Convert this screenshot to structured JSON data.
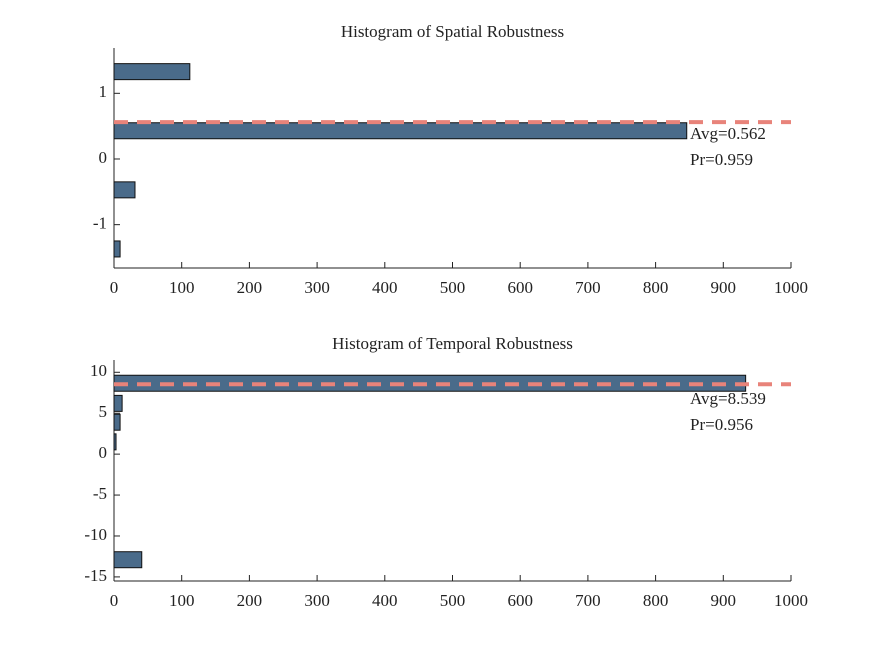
{
  "chart_data": [
    {
      "type": "barh",
      "title": "Histogram of Spatial Robustness",
      "y": [
        1.33,
        0.43,
        -0.47,
        -1.37
      ],
      "values": [
        112,
        846,
        31,
        9
      ],
      "color": "#4a6b8a",
      "xlim": [
        0,
        1000
      ],
      "xticks": [
        0,
        100,
        200,
        300,
        400,
        500,
        600,
        700,
        800,
        900,
        1000
      ],
      "ylim": [
        -1.66,
        1.69
      ],
      "yticks": [
        -1,
        0,
        1
      ],
      "avg_line": {
        "value": 0.562,
        "color": "#e8837a"
      },
      "annotations": [
        "Avg=0.562",
        "Pr=0.959"
      ]
    },
    {
      "type": "barh",
      "title": "Histogram of Temporal Robustness",
      "y": [
        8.66,
        6.2,
        3.9,
        1.5,
        -12.9
      ],
      "values": [
        933,
        12,
        9,
        3,
        41
      ],
      "color": "#4a6b8a",
      "xlim": [
        0,
        1000
      ],
      "xticks": [
        0,
        100,
        200,
        300,
        400,
        500,
        600,
        700,
        800,
        900,
        1000
      ],
      "ylim": [
        -15.5,
        11.5
      ],
      "yticks": [
        -15,
        -10,
        -5,
        0,
        5,
        10
      ],
      "avg_line": {
        "value": 8.539,
        "color": "#e8837a"
      },
      "annotations": [
        "Avg=8.539",
        "Pr=0.956"
      ]
    }
  ]
}
